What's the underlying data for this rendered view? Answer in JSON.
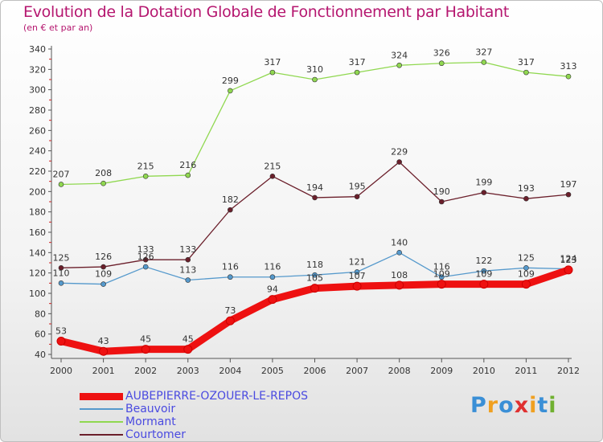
{
  "chart_data": {
    "type": "line",
    "title": "Evolution de la Dotation Globale de Fonctionnement par Habitant",
    "subtitle": "(en € et par an)",
    "xlabel": "",
    "ylabel": "",
    "categories": [
      "2000",
      "2001",
      "2002",
      "2003",
      "2004",
      "2005",
      "2006",
      "2007",
      "2008",
      "2009",
      "2010",
      "2011",
      "2012"
    ],
    "ylim": [
      40,
      340
    ],
    "ytick_step": 20,
    "grid": false,
    "legend_position": "bottom-left",
    "series": [
      {
        "name": "Mormant",
        "color": "#90d850",
        "values": [
          207,
          208,
          215,
          216,
          299,
          317,
          310,
          317,
          324,
          326,
          327,
          317,
          313
        ]
      },
      {
        "name": "Courtomer",
        "color": "#6b1f2b",
        "values": [
          125,
          126,
          133,
          133,
          182,
          215,
          194,
          195,
          229,
          190,
          199,
          193,
          197
        ]
      },
      {
        "name": "Beauvoir",
        "color": "#5599cc",
        "values": [
          110,
          109,
          126,
          113,
          116,
          116,
          118,
          121,
          140,
          116,
          122,
          125,
          124
        ]
      },
      {
        "name": "AUBEPIERRE-OZOUER-LE-REPOS",
        "color": "#ee1111",
        "values": [
          53,
          43,
          45,
          45,
          73,
          94,
          105,
          107,
          108,
          109,
          109,
          109,
          123
        ]
      }
    ]
  },
  "legend": {
    "items": [
      {
        "label": "AUBEPIERRE-OZOUER-LE-REPOS",
        "color": "#ee1111",
        "thick": true
      },
      {
        "label": "Beauvoir",
        "color": "#5599cc",
        "thick": false
      },
      {
        "label": "Mormant",
        "color": "#90d850",
        "thick": false
      },
      {
        "label": "Courtomer",
        "color": "#6b1f2b",
        "thick": false
      }
    ]
  },
  "brand": {
    "letters": [
      "P",
      "r",
      "o",
      "x",
      "i",
      "t",
      "i"
    ],
    "colors": [
      "#3a8fd6",
      "#f0a020",
      "#3a8fd6",
      "#e03030",
      "#f0a020",
      "#3a8fd6",
      "#70b030"
    ]
  }
}
